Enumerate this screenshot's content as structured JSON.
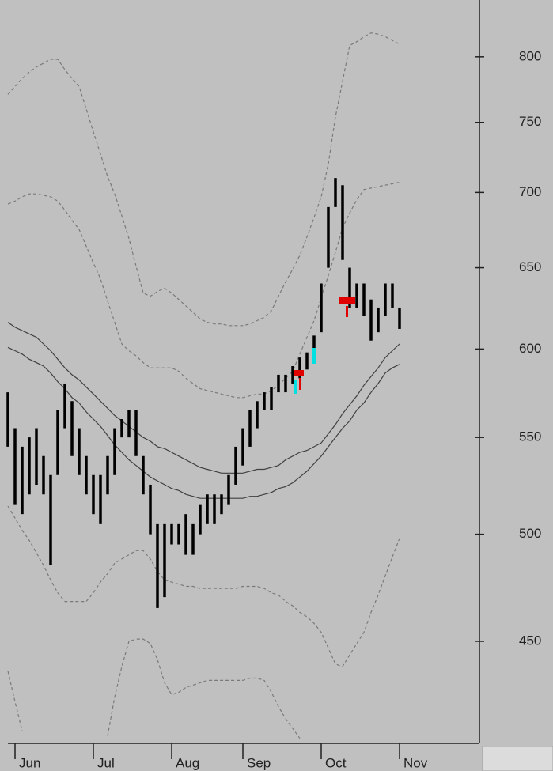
{
  "chart_data": {
    "type": "range",
    "log_scale": true,
    "ylim": [
      407,
      846
    ],
    "yticks": [
      450,
      500,
      550,
      600,
      650,
      700,
      750,
      800
    ],
    "bar_color": "#000000",
    "categories": [
      null,
      "Jun",
      null,
      null,
      null,
      null,
      null,
      null,
      null,
      null,
      null,
      null,
      "Jul",
      null,
      null,
      null,
      null,
      null,
      null,
      null,
      null,
      null,
      null,
      "Aug",
      null,
      null,
      null,
      null,
      null,
      null,
      null,
      null,
      null,
      "Sep",
      null,
      null,
      null,
      null,
      null,
      null,
      null,
      null,
      null,
      null,
      "Oct",
      null,
      null,
      null,
      null,
      null,
      null,
      null,
      null,
      null,
      null,
      "Nov"
    ],
    "high": [
      575,
      555,
      545,
      550,
      555,
      540,
      530,
      565,
      580,
      570,
      555,
      540,
      530,
      530,
      540,
      555,
      560,
      565,
      565,
      540,
      525,
      505,
      505,
      505,
      505,
      510,
      505,
      515,
      520,
      520,
      520,
      530,
      545,
      555,
      565,
      570,
      575,
      578,
      585,
      585,
      590,
      595,
      598,
      608,
      640,
      690,
      710,
      705,
      650,
      640,
      640,
      630,
      625,
      640,
      640,
      625
    ],
    "low": [
      545,
      515,
      510,
      520,
      525,
      520,
      485,
      530,
      555,
      540,
      530,
      520,
      510,
      505,
      520,
      530,
      550,
      550,
      540,
      520,
      500,
      465,
      470,
      495,
      495,
      490,
      490,
      500,
      505,
      505,
      510,
      515,
      525,
      535,
      545,
      555,
      565,
      565,
      575,
      575,
      580,
      583,
      588,
      595,
      610,
      650,
      690,
      655,
      625,
      625,
      620,
      605,
      610,
      620,
      625,
      612
    ],
    "lines": [
      {
        "color": "#404040",
        "dashed": false,
        "values": [
          616,
          613,
          611,
          609,
          607,
          603,
          599,
          594,
          589,
          585,
          582,
          578,
          574,
          570,
          566,
          562,
          559,
          556,
          553,
          550,
          548,
          545,
          544,
          542,
          540,
          538,
          536,
          534,
          533,
          532,
          531,
          531,
          531,
          531,
          532,
          533,
          533,
          534,
          535,
          538,
          540,
          542,
          543,
          545,
          547,
          552,
          557,
          563,
          568,
          573,
          579,
          584,
          589,
          595,
          599,
          603
        ]
      },
      {
        "color": "#404040",
        "dashed": false,
        "values": [
          601,
          599,
          597,
          594,
          592,
          590,
          586,
          581,
          577,
          572,
          569,
          564,
          560,
          556,
          551,
          546,
          542,
          538,
          535,
          532,
          529,
          527,
          525,
          523,
          522,
          520,
          519,
          518,
          518,
          518,
          518,
          518,
          518,
          518,
          519,
          519,
          520,
          521,
          523,
          524,
          526,
          529,
          532,
          536,
          540,
          545,
          550,
          555,
          559,
          565,
          569,
          575,
          580,
          586,
          589,
          591
        ]
      },
      {
        "color": "#7a7a7a",
        "dashed": true,
        "values": [
          771,
          777,
          783,
          788,
          792,
          795,
          798,
          798,
          790,
          783,
          777,
          760,
          743,
          727,
          711,
          699,
          684,
          669,
          651,
          634,
          632,
          635,
          637,
          634,
          630,
          626,
          622,
          618,
          616,
          615,
          615,
          614,
          614,
          614,
          615,
          617,
          619,
          623,
          632,
          641,
          649,
          658,
          670,
          683,
          697,
          720,
          754,
          781,
          809,
          812,
          816,
          819,
          818,
          816,
          813,
          810
        ]
      },
      {
        "color": "#7a7a7a",
        "dashed": true,
        "values": [
          692,
          694,
          697,
          699,
          699,
          698,
          697,
          694,
          688,
          681,
          675,
          664,
          653,
          643,
          629,
          616,
          603,
          599,
          596,
          592,
          589,
          589,
          589,
          589,
          587,
          583,
          580,
          577,
          576,
          575,
          574,
          573,
          572,
          572,
          573,
          574,
          574,
          576,
          579,
          583,
          587,
          597,
          607,
          617,
          631,
          645,
          660,
          676,
          686,
          695,
          702,
          703,
          704,
          705,
          706,
          707
        ]
      },
      {
        "color": "#7a7a7a",
        "dashed": true,
        "values": [
          514,
          508,
          502,
          497,
          491,
          485,
          478,
          472,
          468,
          468,
          468,
          468,
          472,
          477,
          481,
          486,
          488,
          490,
          492,
          492,
          488,
          482,
          478,
          477,
          476,
          475,
          475,
          474,
          474,
          474,
          474,
          474,
          474,
          475,
          475,
          475,
          474,
          472,
          471,
          468,
          466,
          463,
          461,
          458,
          454,
          447,
          440,
          439,
          444,
          449,
          454,
          463,
          471,
          480,
          489,
          498
        ]
      },
      {
        "color": "#7a7a7a",
        "dashed": true,
        "values": [
          437,
          424,
          412,
          null,
          null,
          null,
          null,
          null,
          null,
          null,
          null,
          null,
          null,
          null,
          410,
          426,
          439,
          450,
          451,
          451,
          449,
          442,
          432,
          427,
          428,
          430,
          431,
          432,
          433,
          433,
          433,
          433,
          433,
          433,
          434,
          434,
          433,
          428,
          422,
          417,
          413,
          409,
          null,
          null,
          null,
          null,
          null,
          null,
          null,
          null,
          null,
          null,
          null,
          null,
          null,
          null
        ]
      }
    ]
  }
}
